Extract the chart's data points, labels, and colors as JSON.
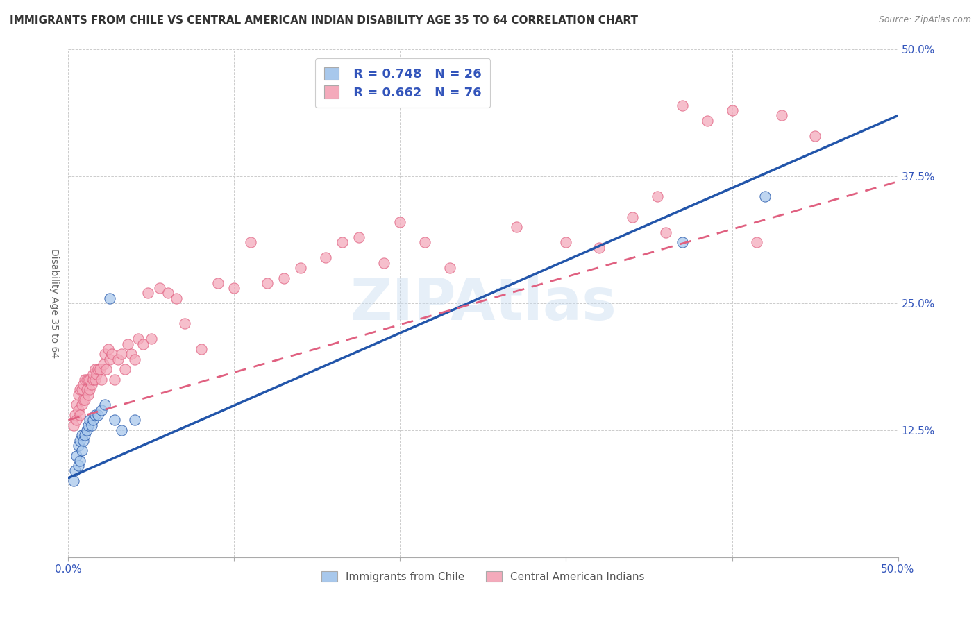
{
  "title": "IMMIGRANTS FROM CHILE VS CENTRAL AMERICAN INDIAN DISABILITY AGE 35 TO 64 CORRELATION CHART",
  "source": "Source: ZipAtlas.com",
  "xlabel": "",
  "ylabel": "Disability Age 35 to 64",
  "xlim": [
    0.0,
    0.5
  ],
  "ylim": [
    0.0,
    0.5
  ],
  "xticks": [
    0.0,
    0.5
  ],
  "yticks": [
    0.125,
    0.25,
    0.375,
    0.5
  ],
  "xtick_labels": [
    "0.0%",
    "50.0%"
  ],
  "ytick_labels": [
    "12.5%",
    "25.0%",
    "37.5%",
    "50.0%"
  ],
  "blue_color": "#A8C8EC",
  "pink_color": "#F4AABB",
  "blue_line_color": "#2255AA",
  "pink_line_color": "#E06080",
  "watermark": "ZIPAtlas",
  "legend_r_blue": "R = 0.748",
  "legend_n_blue": "N = 26",
  "legend_r_pink": "R = 0.662",
  "legend_n_pink": "N = 76",
  "legend_label_blue": "Immigrants from Chile",
  "legend_label_pink": "Central American Indians",
  "blue_line_x0": 0.0,
  "blue_line_y0": 0.078,
  "blue_line_x1": 0.5,
  "blue_line_y1": 0.435,
  "pink_line_x0": 0.0,
  "pink_line_y0": 0.135,
  "pink_line_x1": 0.5,
  "pink_line_y1": 0.37,
  "blue_scatter_x": [
    0.003,
    0.004,
    0.005,
    0.006,
    0.006,
    0.007,
    0.007,
    0.008,
    0.008,
    0.009,
    0.01,
    0.011,
    0.012,
    0.013,
    0.014,
    0.015,
    0.016,
    0.018,
    0.02,
    0.022,
    0.025,
    0.028,
    0.032,
    0.04,
    0.37,
    0.42
  ],
  "blue_scatter_y": [
    0.075,
    0.085,
    0.1,
    0.09,
    0.11,
    0.095,
    0.115,
    0.105,
    0.12,
    0.115,
    0.12,
    0.125,
    0.13,
    0.135,
    0.13,
    0.135,
    0.14,
    0.14,
    0.145,
    0.15,
    0.255,
    0.135,
    0.125,
    0.135,
    0.31,
    0.355
  ],
  "pink_scatter_x": [
    0.003,
    0.004,
    0.005,
    0.005,
    0.006,
    0.006,
    0.007,
    0.007,
    0.008,
    0.008,
    0.009,
    0.009,
    0.01,
    0.01,
    0.011,
    0.011,
    0.012,
    0.012,
    0.013,
    0.013,
    0.014,
    0.015,
    0.015,
    0.016,
    0.016,
    0.017,
    0.018,
    0.019,
    0.02,
    0.021,
    0.022,
    0.023,
    0.024,
    0.025,
    0.026,
    0.028,
    0.03,
    0.032,
    0.034,
    0.036,
    0.038,
    0.04,
    0.042,
    0.045,
    0.048,
    0.05,
    0.055,
    0.06,
    0.065,
    0.07,
    0.08,
    0.09,
    0.1,
    0.11,
    0.12,
    0.13,
    0.14,
    0.155,
    0.165,
    0.175,
    0.19,
    0.2,
    0.215,
    0.23,
    0.27,
    0.3,
    0.32,
    0.34,
    0.355,
    0.36,
    0.37,
    0.385,
    0.4,
    0.415,
    0.43,
    0.45
  ],
  "pink_scatter_y": [
    0.13,
    0.14,
    0.135,
    0.15,
    0.145,
    0.16,
    0.14,
    0.165,
    0.15,
    0.165,
    0.155,
    0.17,
    0.155,
    0.175,
    0.165,
    0.175,
    0.16,
    0.175,
    0.165,
    0.175,
    0.17,
    0.175,
    0.18,
    0.175,
    0.185,
    0.18,
    0.185,
    0.185,
    0.175,
    0.19,
    0.2,
    0.185,
    0.205,
    0.195,
    0.2,
    0.175,
    0.195,
    0.2,
    0.185,
    0.21,
    0.2,
    0.195,
    0.215,
    0.21,
    0.26,
    0.215,
    0.265,
    0.26,
    0.255,
    0.23,
    0.205,
    0.27,
    0.265,
    0.31,
    0.27,
    0.275,
    0.285,
    0.295,
    0.31,
    0.315,
    0.29,
    0.33,
    0.31,
    0.285,
    0.325,
    0.31,
    0.305,
    0.335,
    0.355,
    0.32,
    0.445,
    0.43,
    0.44,
    0.31,
    0.435,
    0.415
  ],
  "title_fontsize": 11,
  "axis_label_fontsize": 10,
  "tick_fontsize": 11,
  "source_fontsize": 9
}
